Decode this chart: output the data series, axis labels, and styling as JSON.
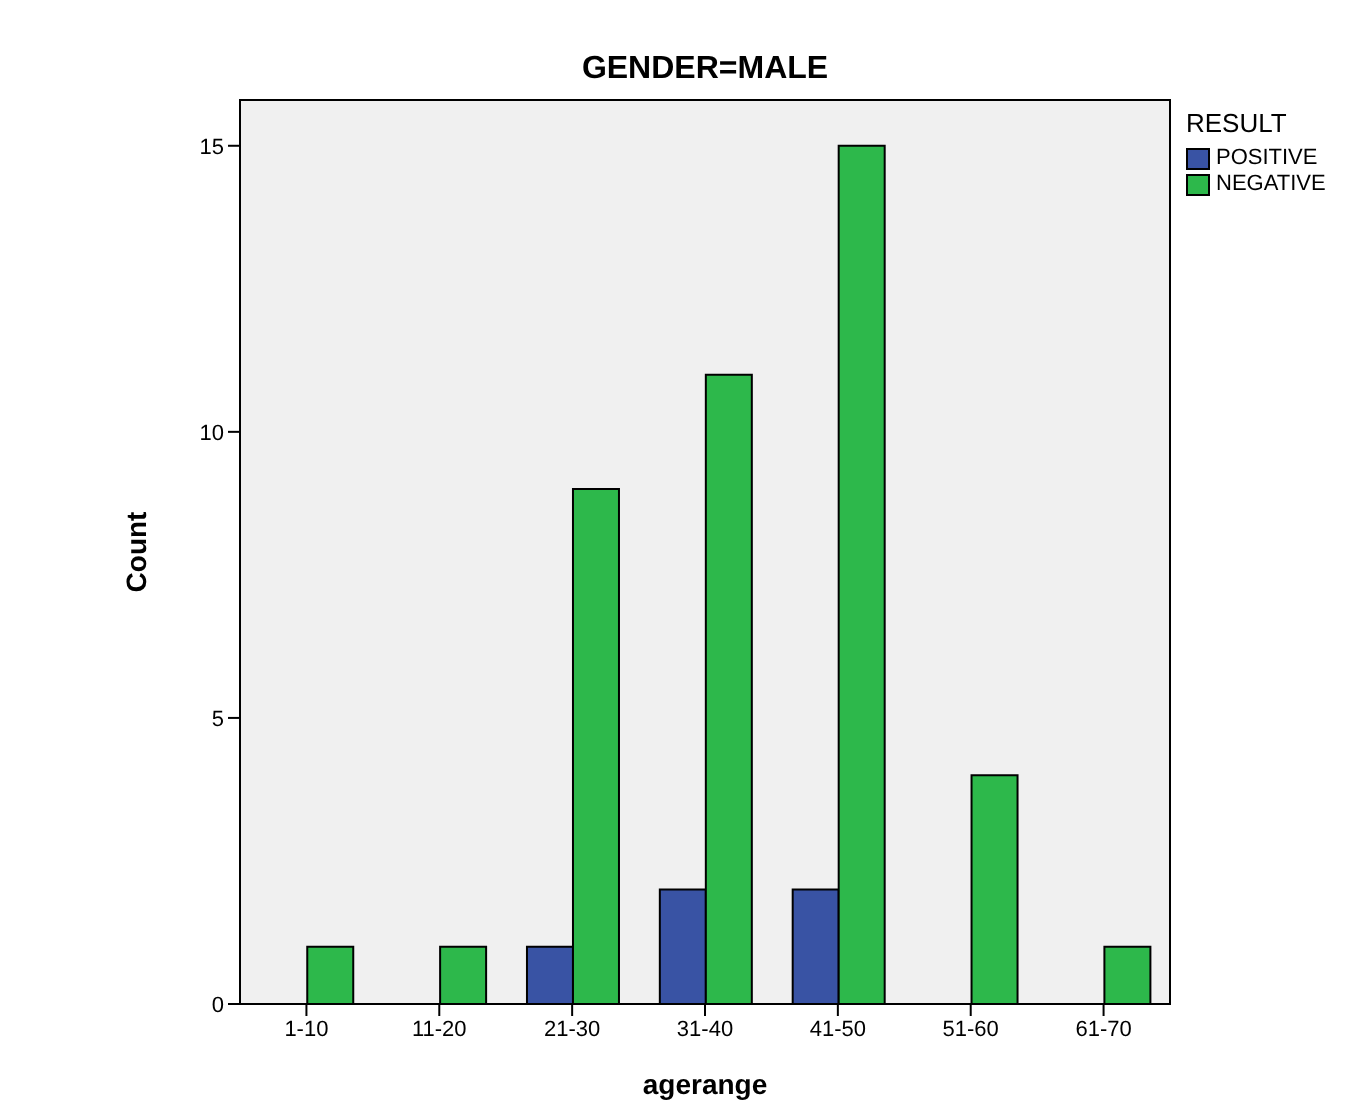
{
  "chart_data": {
    "type": "bar",
    "title": "GENDER=MALE",
    "xlabel": "agerange",
    "ylabel": "Count",
    "legend_title": "RESULT",
    "legend": "right",
    "grid": false,
    "categories": [
      "1-10",
      "11-20",
      "21-30",
      "31-40",
      "41-50",
      "51-60",
      "61-70"
    ],
    "series": [
      {
        "name": "POSITIVE",
        "color": "#3953a4",
        "values": [
          0,
          0,
          1,
          2,
          2,
          0,
          0
        ]
      },
      {
        "name": "NEGATIVE",
        "color": "#2db84b",
        "values": [
          1,
          1,
          9,
          11,
          15,
          4,
          1
        ]
      }
    ],
    "ylim": [
      0,
      15.8
    ],
    "yticks": [
      0,
      5,
      10,
      15
    ]
  }
}
